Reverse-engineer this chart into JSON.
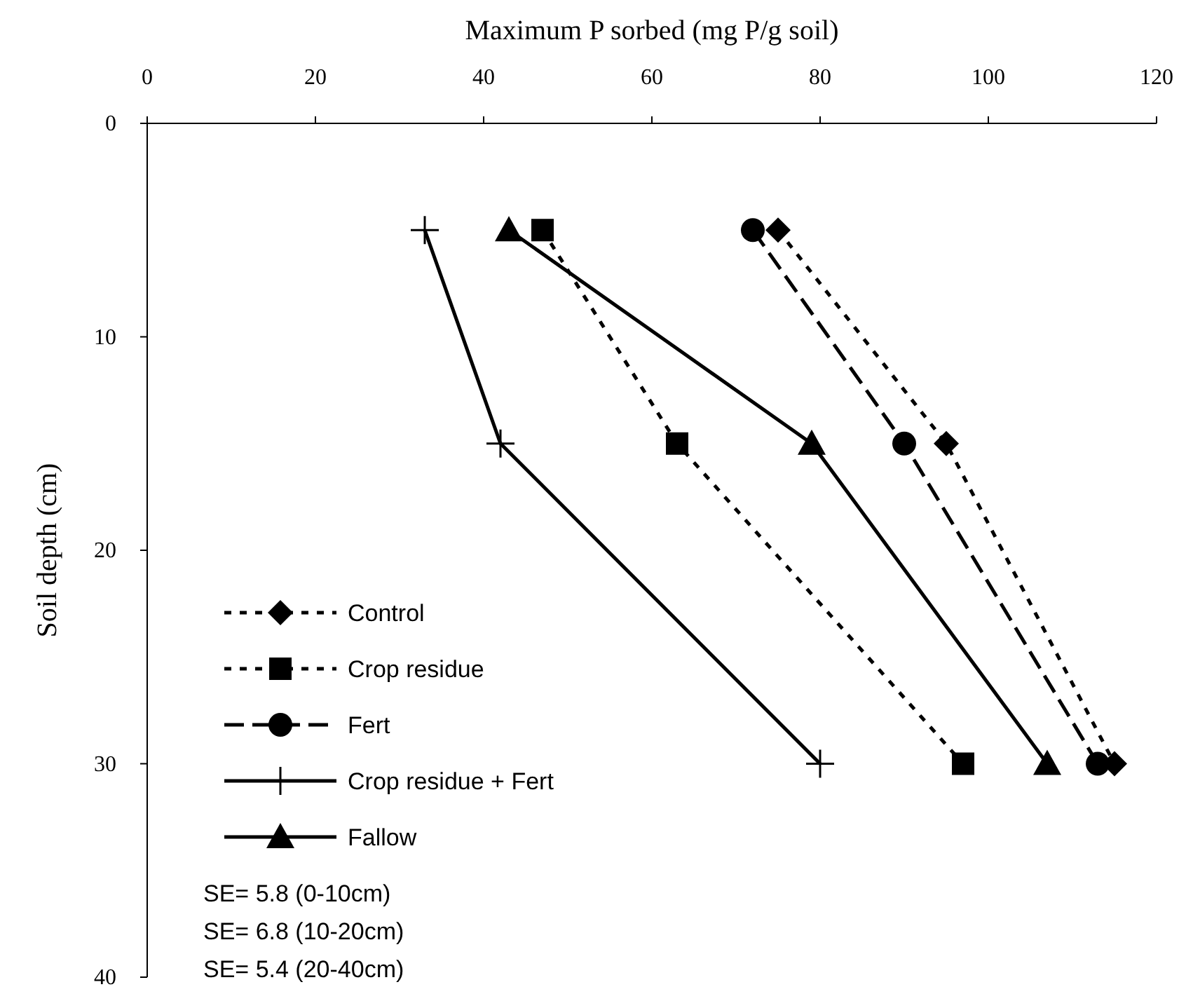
{
  "chart_data": {
    "type": "line",
    "xlabel": "Maximum P sorbed (mg P/g soil)",
    "ylabel": "Soil depth (cm)",
    "xlim": [
      0,
      120
    ],
    "xticks": [
      0,
      20,
      40,
      60,
      80,
      100,
      120
    ],
    "ylim": [
      40,
      0
    ],
    "yticks": [
      0,
      10,
      20,
      30,
      40
    ],
    "grid": false,
    "legend": "bottom left",
    "series": [
      {
        "name": "Control",
        "color": "#000000",
        "marker": "diamond",
        "line_style": "dotted",
        "x": [
          75,
          95,
          115
        ],
        "values": [
          5,
          15,
          30
        ]
      },
      {
        "name": "Crop residue",
        "color": "#000000",
        "marker": "square",
        "line_style": "dotted",
        "x": [
          47,
          63,
          97
        ],
        "values": [
          5,
          15,
          30
        ]
      },
      {
        "name": "Fert",
        "color": "#000000",
        "marker": "circle",
        "line_style": "dashed",
        "x": [
          72,
          90,
          113
        ],
        "values": [
          5,
          15,
          30
        ]
      },
      {
        "name": "Crop residue + Fert",
        "color": "#000000",
        "marker": "cross",
        "line_style": "solid",
        "x": [
          33,
          42,
          80
        ],
        "values": [
          5,
          15,
          30
        ]
      },
      {
        "name": "Fallow",
        "color": "#000000",
        "marker": "triangle",
        "line_style": "solid",
        "x": [
          43,
          79,
          107
        ],
        "values": [
          5,
          15,
          30
        ]
      }
    ],
    "annotations": [
      "SE= 5.8 (0-10cm)",
      "SE= 6.8 (10-20cm)",
      "SE= 5.4 (20-40cm)"
    ]
  }
}
